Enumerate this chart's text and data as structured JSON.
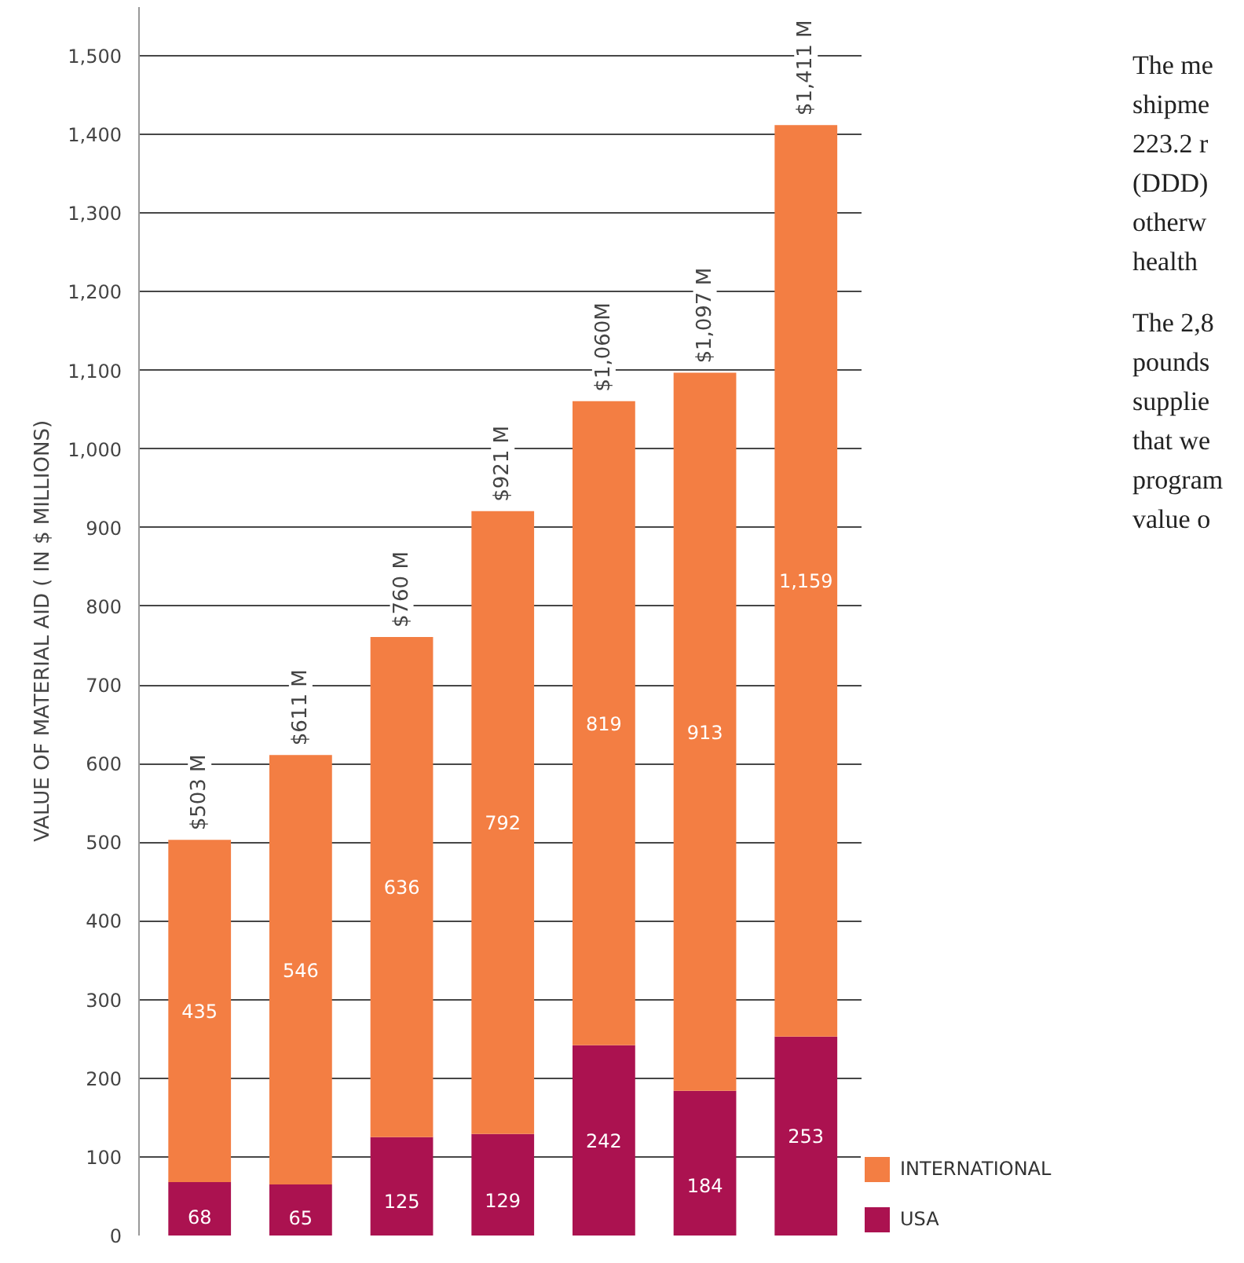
{
  "chart_data": {
    "type": "bar",
    "stacked": true,
    "ylabel": "VALUE OF MATERIAL AID    ( IN $ MILLIONS)",
    "categories": [
      null,
      null,
      null,
      null,
      null,
      null,
      null
    ],
    "series": [
      {
        "name": "USA",
        "color": "#ab1250",
        "values": [
          68,
          65,
          125,
          129,
          242,
          184,
          253
        ]
      },
      {
        "name": "INTERNATIONAL",
        "color": "#f37e43",
        "values": [
          435,
          546,
          636,
          792,
          819,
          913,
          1159
        ],
        "value_labels": [
          "435",
          "546",
          "636",
          "792",
          "819",
          "913",
          "1,159"
        ]
      }
    ],
    "totals": [
      "$503 M",
      "$611 M",
      "$760 M",
      "$921 M",
      "$1,060M",
      "$1,097 M",
      "$1,411 M"
    ],
    "data_labels": true,
    "ylim": [
      0,
      1562
    ],
    "yticks": [
      0,
      100,
      200,
      300,
      400,
      500,
      600,
      700,
      800,
      900,
      {
        "value": 1000,
        "label": "1,000"
      },
      {
        "value": 1100,
        "label": "1,100"
      },
      {
        "value": 1200,
        "label": "1,200"
      },
      {
        "value": 1300,
        "label": "1,300"
      },
      {
        "value": 1400,
        "label": "1,400"
      },
      {
        "value": 1500,
        "label": "1,500"
      }
    ],
    "grid": "y",
    "legend": "bottom right",
    "annotations": [
      "The me\nshipme\n223.2 r\n(DDD)\notherw\nhealth",
      "The 2,8\npounds\nsupplie\nthat we\nprogram\nvalue o"
    ]
  }
}
